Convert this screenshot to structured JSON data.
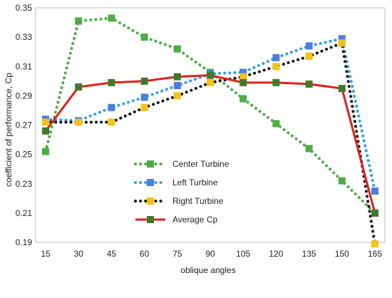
{
  "chart_data": {
    "type": "line",
    "title": "",
    "xlabel": "oblique angles",
    "ylabel": "coefficient of performance, Cp",
    "x": [
      15,
      30,
      45,
      60,
      75,
      90,
      105,
      120,
      135,
      150,
      165
    ],
    "x_tick_labels": [
      "15",
      "30",
      "45",
      "60",
      "75",
      "90",
      "105",
      "120",
      "135",
      "150",
      "165"
    ],
    "ylim": [
      0.19,
      0.35
    ],
    "y_tick_labels": [
      "0.19",
      "0.21",
      "0.23",
      "0.25",
      "0.27",
      "0.29",
      "0.31",
      "0.33",
      "0.35"
    ],
    "grid": false,
    "legend_placement": "center-left",
    "series": [
      {
        "name": "Center Turbine",
        "style": "dotted",
        "line_color": "#4eac45",
        "marker_color": "#4eac45",
        "values": [
          0.252,
          0.341,
          0.343,
          0.33,
          0.322,
          0.306,
          0.288,
          0.271,
          0.254,
          0.232,
          0.21
        ]
      },
      {
        "name": "Left Turbine",
        "style": "dotted",
        "line_color": "#2e9fe0",
        "marker_color": "#4a7fe0",
        "values": [
          0.274,
          0.273,
          0.282,
          0.289,
          0.297,
          0.305,
          0.306,
          0.316,
          0.324,
          0.329,
          0.225
        ]
      },
      {
        "name": "Right Turbine",
        "style": "dotted",
        "line_color": "#111111",
        "marker_color": "#f2c314",
        "values": [
          0.272,
          0.272,
          0.272,
          0.282,
          0.29,
          0.299,
          0.303,
          0.31,
          0.317,
          0.326,
          0.189
        ]
      },
      {
        "name": "Average Cp",
        "style": "solid",
        "line_color": "#e0201d",
        "marker_color": "#3f7a2a",
        "values": [
          0.266,
          0.296,
          0.299,
          0.3,
          0.303,
          0.304,
          0.299,
          0.299,
          0.298,
          0.295,
          0.21
        ]
      }
    ]
  }
}
